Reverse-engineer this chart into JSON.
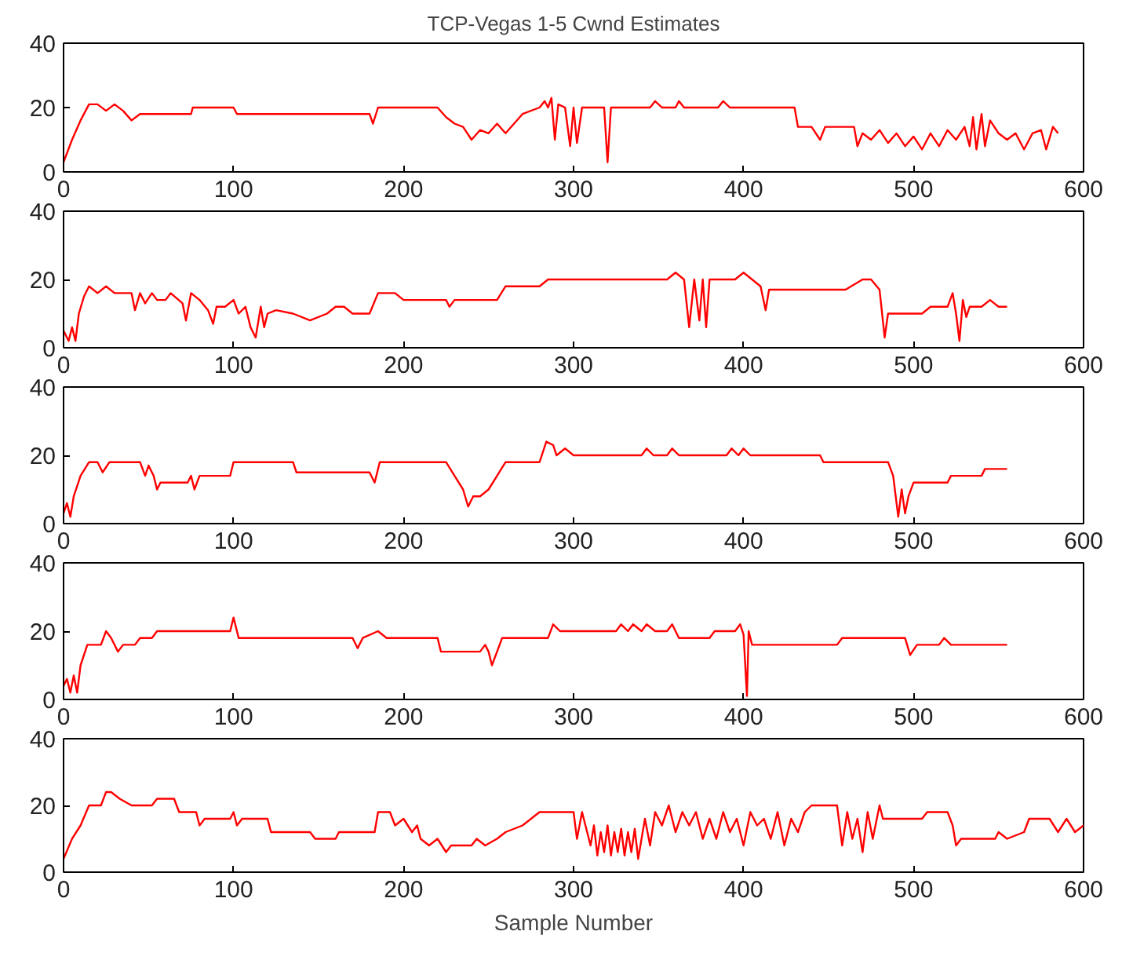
{
  "chart_data": [
    {
      "type": "line",
      "title": "TCP-Vegas 1-5 Cwnd Estimates",
      "color": "#ff0000",
      "xlim": [
        0,
        600
      ],
      "ylim": [
        0,
        40
      ],
      "xticks": [
        0,
        100,
        200,
        300,
        400,
        500,
        600
      ],
      "yticks": [
        0,
        20,
        40
      ],
      "grid": false,
      "x": [
        0,
        5,
        10,
        15,
        20,
        25,
        30,
        35,
        40,
        45,
        75,
        76,
        100,
        102,
        180,
        182,
        185,
        220,
        225,
        230,
        235,
        240,
        245,
        250,
        255,
        260,
        265,
        270,
        280,
        283,
        285,
        287,
        289,
        291,
        295,
        298,
        300,
        302,
        305,
        318,
        320,
        322,
        345,
        348,
        352,
        360,
        362,
        365,
        385,
        388,
        392,
        430,
        432,
        440,
        445,
        448,
        465,
        467,
        470,
        475,
        480,
        485,
        490,
        495,
        500,
        505,
        510,
        515,
        520,
        525,
        530,
        533,
        535,
        537,
        540,
        542,
        545,
        550,
        555,
        560,
        565,
        570,
        575,
        578,
        582,
        585
      ],
      "values": [
        3,
        10,
        16,
        21,
        21,
        19,
        21,
        19,
        16,
        18,
        18,
        20,
        20,
        18,
        18,
        15,
        20,
        20,
        17,
        15,
        14,
        10,
        13,
        12,
        15,
        12,
        15,
        18,
        20,
        22,
        20,
        23,
        10,
        21,
        20,
        8,
        20,
        9,
        20,
        20,
        3,
        20,
        20,
        22,
        20,
        20,
        22,
        20,
        20,
        22,
        20,
        20,
        14,
        14,
        10,
        14,
        14,
        8,
        12,
        10,
        13,
        9,
        12,
        8,
        11,
        7,
        12,
        8,
        13,
        10,
        14,
        8,
        17,
        7,
        18,
        8,
        16,
        12,
        10,
        12,
        7,
        12,
        13,
        7,
        14,
        12
      ]
    },
    {
      "type": "line",
      "color": "#ff0000",
      "xlim": [
        0,
        600
      ],
      "ylim": [
        0,
        40
      ],
      "xticks": [
        0,
        100,
        200,
        300,
        400,
        500,
        600
      ],
      "yticks": [
        0,
        20,
        40
      ],
      "grid": false,
      "x": [
        0,
        3,
        5,
        7,
        9,
        12,
        15,
        20,
        25,
        30,
        40,
        42,
        45,
        48,
        52,
        55,
        60,
        63,
        70,
        72,
        75,
        80,
        85,
        88,
        90,
        95,
        100,
        103,
        107,
        110,
        113,
        116,
        118,
        120,
        125,
        135,
        145,
        155,
        160,
        165,
        170,
        180,
        185,
        195,
        200,
        225,
        227,
        230,
        255,
        260,
        280,
        285,
        355,
        360,
        365,
        368,
        371,
        374,
        376,
        378,
        380,
        395,
        400,
        405,
        410,
        413,
        415,
        460,
        470,
        475,
        480,
        483,
        485,
        505,
        510,
        520,
        523,
        525,
        527,
        529,
        531,
        533,
        540,
        545,
        550,
        555
      ],
      "values": [
        5,
        2,
        6,
        2,
        10,
        15,
        18,
        16,
        18,
        16,
        16,
        11,
        16,
        13,
        16,
        14,
        14,
        16,
        13,
        8,
        16,
        14,
        11,
        7,
        12,
        12,
        14,
        10,
        12,
        6,
        3,
        12,
        6,
        10,
        11,
        10,
        8,
        10,
        12,
        12,
        10,
        10,
        16,
        16,
        14,
        14,
        12,
        14,
        14,
        18,
        18,
        20,
        20,
        22,
        20,
        6,
        20,
        8,
        20,
        6,
        20,
        20,
        22,
        20,
        18,
        11,
        17,
        17,
        20,
        20,
        17,
        3,
        10,
        10,
        12,
        12,
        16,
        10,
        2,
        14,
        9,
        12,
        12,
        14,
        12,
        12
      ]
    },
    {
      "type": "line",
      "color": "#ff0000",
      "xlim": [
        0,
        600
      ],
      "ylim": [
        0,
        40
      ],
      "xticks": [
        0,
        100,
        200,
        300,
        400,
        500,
        600
      ],
      "yticks": [
        0,
        20,
        40
      ],
      "grid": false,
      "x": [
        0,
        2,
        4,
        6,
        10,
        15,
        20,
        23,
        27,
        45,
        48,
        50,
        53,
        55,
        57,
        73,
        75,
        77,
        80,
        98,
        100,
        135,
        137,
        180,
        183,
        186,
        225,
        230,
        235,
        238,
        241,
        245,
        250,
        255,
        260,
        280,
        284,
        288,
        290,
        295,
        300,
        340,
        343,
        347,
        355,
        358,
        362,
        390,
        393,
        397,
        400,
        404,
        445,
        447,
        485,
        488,
        491,
        493,
        495,
        497,
        500,
        520,
        522,
        540,
        542,
        555
      ],
      "values": [
        3,
        6,
        2,
        8,
        14,
        18,
        18,
        15,
        18,
        18,
        14,
        17,
        14,
        10,
        12,
        12,
        14,
        10,
        14,
        14,
        18,
        18,
        15,
        15,
        12,
        18,
        18,
        14,
        10,
        5,
        8,
        8,
        10,
        14,
        18,
        18,
        24,
        23,
        20,
        22,
        20,
        20,
        22,
        20,
        20,
        22,
        20,
        20,
        22,
        20,
        22,
        20,
        20,
        18,
        18,
        14,
        2,
        10,
        3,
        8,
        12,
        12,
        14,
        14,
        16,
        16
      ]
    },
    {
      "type": "line",
      "color": "#ff0000",
      "xlim": [
        0,
        600
      ],
      "ylim": [
        0,
        40
      ],
      "xticks": [
        0,
        100,
        200,
        300,
        400,
        500,
        600
      ],
      "yticks": [
        0,
        20,
        40
      ],
      "grid": false,
      "x": [
        0,
        2,
        4,
        6,
        8,
        10,
        14,
        22,
        25,
        28,
        32,
        35,
        42,
        45,
        52,
        55,
        98,
        100,
        103,
        170,
        173,
        176,
        185,
        190,
        220,
        222,
        245,
        248,
        250,
        252,
        255,
        258,
        285,
        288,
        292,
        325,
        328,
        332,
        335,
        340,
        343,
        348,
        355,
        358,
        362,
        380,
        383,
        395,
        398,
        400,
        402,
        403,
        405,
        455,
        458,
        495,
        498,
        502,
        515,
        518,
        522,
        555
      ],
      "values": [
        4,
        6,
        2,
        7,
        2,
        10,
        16,
        16,
        20,
        18,
        14,
        16,
        16,
        18,
        18,
        20,
        20,
        24,
        18,
        18,
        15,
        18,
        20,
        18,
        18,
        14,
        14,
        16,
        14,
        10,
        14,
        18,
        18,
        22,
        20,
        20,
        22,
        20,
        22,
        20,
        22,
        20,
        20,
        22,
        18,
        18,
        20,
        20,
        22,
        19,
        1,
        20,
        16,
        16,
        18,
        18,
        13,
        16,
        16,
        18,
        16,
        16
      ]
    },
    {
      "type": "line",
      "xlabel": "Sample Number",
      "color": "#ff0000",
      "xlim": [
        0,
        600
      ],
      "ylim": [
        0,
        40
      ],
      "xticks": [
        0,
        100,
        200,
        300,
        400,
        500,
        600
      ],
      "yticks": [
        0,
        20,
        40
      ],
      "grid": false,
      "x": [
        0,
        5,
        10,
        15,
        22,
        25,
        28,
        33,
        40,
        52,
        55,
        65,
        68,
        78,
        80,
        83,
        98,
        100,
        102,
        105,
        120,
        122,
        145,
        148,
        160,
        162,
        183,
        185,
        192,
        195,
        200,
        205,
        208,
        210,
        215,
        220,
        225,
        228,
        240,
        243,
        248,
        255,
        260,
        270,
        275,
        280,
        300,
        302,
        305,
        310,
        312,
        314,
        316,
        318,
        320,
        322,
        324,
        326,
        328,
        330,
        332,
        334,
        336,
        338,
        340,
        342,
        345,
        348,
        352,
        356,
        360,
        364,
        368,
        372,
        376,
        380,
        384,
        388,
        392,
        396,
        400,
        404,
        408,
        412,
        416,
        420,
        424,
        428,
        432,
        436,
        440,
        455,
        458,
        461,
        464,
        467,
        470,
        473,
        476,
        480,
        482,
        505,
        508,
        520,
        523,
        525,
        528,
        548,
        550,
        555,
        565,
        568,
        580,
        585,
        590,
        595,
        600
      ],
      "values": [
        4,
        10,
        14,
        20,
        20,
        24,
        24,
        22,
        20,
        20,
        22,
        22,
        18,
        18,
        14,
        16,
        16,
        18,
        14,
        16,
        16,
        12,
        12,
        10,
        10,
        12,
        12,
        18,
        18,
        14,
        16,
        12,
        14,
        10,
        8,
        10,
        6,
        8,
        8,
        10,
        8,
        10,
        12,
        14,
        16,
        18,
        18,
        10,
        18,
        8,
        14,
        5,
        12,
        6,
        14,
        5,
        12,
        6,
        13,
        5,
        12,
        6,
        13,
        4,
        10,
        16,
        8,
        18,
        14,
        20,
        12,
        18,
        14,
        18,
        10,
        16,
        10,
        18,
        12,
        16,
        8,
        18,
        14,
        16,
        10,
        18,
        8,
        16,
        12,
        18,
        20,
        20,
        8,
        18,
        10,
        16,
        6,
        18,
        10,
        20,
        16,
        16,
        18,
        18,
        14,
        8,
        10,
        10,
        12,
        10,
        12,
        16,
        16,
        12,
        16,
        12,
        14
      ]
    }
  ]
}
